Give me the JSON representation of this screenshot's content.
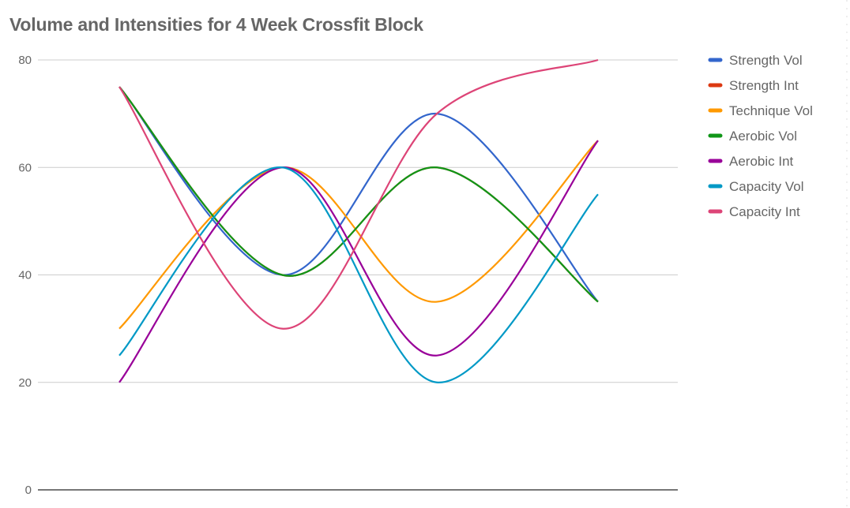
{
  "chart_data": {
    "type": "line",
    "title": "Volume and Intensities for 4 Week Crossfit Block",
    "xlabel": "",
    "ylabel": "",
    "ylim": [
      0,
      80
    ],
    "yticks": [
      "0",
      "20",
      "40",
      "60",
      "80"
    ],
    "grid": true,
    "curve": "smooth",
    "legend_position": "right",
    "x": [
      1,
      2,
      3,
      4
    ],
    "series": [
      {
        "name": "Strength Vol",
        "color": "#3366cc",
        "values": [
          75,
          40,
          70,
          35
        ]
      },
      {
        "name": "Strength Int",
        "color": "#dc3912",
        "values": [
          75,
          40,
          60,
          35
        ]
      },
      {
        "name": "Technique Vol",
        "color": "#ff9900",
        "values": [
          30,
          60,
          35,
          65
        ]
      },
      {
        "name": "Aerobic Vol",
        "color": "#109618",
        "values": [
          75,
          40,
          60,
          35
        ]
      },
      {
        "name": "Aerobic Int",
        "color": "#990099",
        "values": [
          20,
          60,
          25,
          65
        ]
      },
      {
        "name": "Capacity Vol",
        "color": "#0099c6",
        "values": [
          25,
          60,
          20,
          55
        ]
      },
      {
        "name": "Capacity Int",
        "color": "#dd4477",
        "values": [
          75,
          30,
          70,
          80
        ]
      }
    ]
  }
}
